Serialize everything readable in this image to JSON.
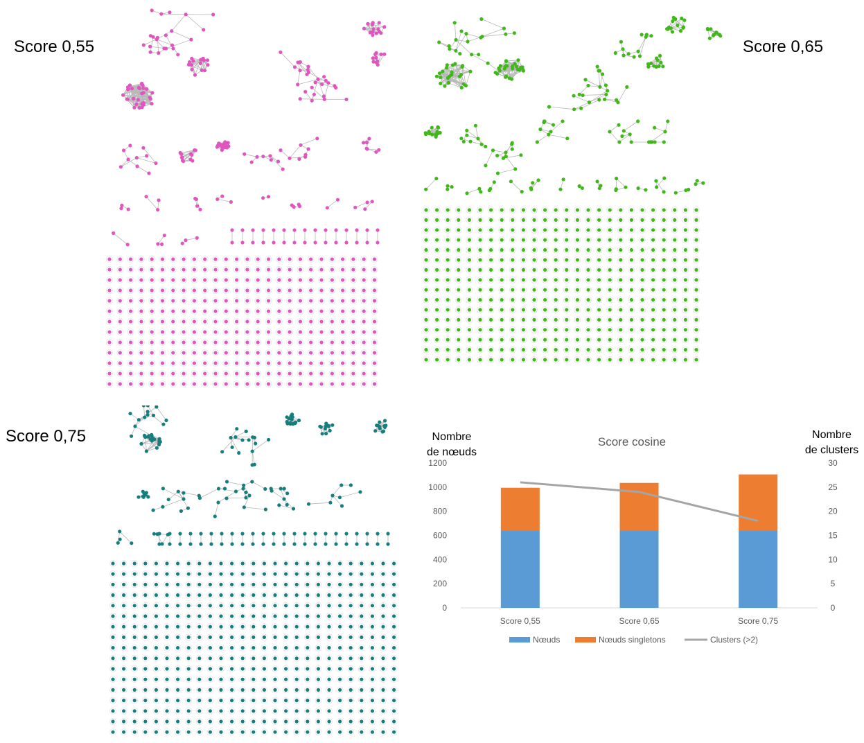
{
  "panels": [
    {
      "score_label": "Score 0,55",
      "color": "#e055c0"
    },
    {
      "score_label": "Score 0,65",
      "color": "#3fb818"
    },
    {
      "score_label": "Score 0,75",
      "color": "#167f7d"
    }
  ],
  "edge_color": "#b8b8b8",
  "chart_data": {
    "type": "bar",
    "title": "Score cosine",
    "y_left_label": [
      "Nombre",
      "de nœuds"
    ],
    "y_right_label": [
      "Nombre",
      "de clusters"
    ],
    "categories": [
      "Score 0,55",
      "Score 0,65",
      "Score 0,75"
    ],
    "stacked": true,
    "series": [
      {
        "name": "Nœuds",
        "color": "#5b9bd5",
        "axis": "left",
        "values": [
          640,
          640,
          640
        ]
      },
      {
        "name": "Nœuds singletons",
        "color": "#ed7d31",
        "axis": "left",
        "values": [
          355,
          395,
          465
        ]
      },
      {
        "name": "Clusters (>2)",
        "color": "#a5a5a5",
        "axis": "right",
        "type": "line",
        "values": [
          26,
          24,
          18
        ]
      }
    ],
    "ylim": [
      0,
      1200
    ],
    "yticks": [
      0,
      200,
      400,
      600,
      800,
      1000,
      1200
    ],
    "y2lim": [
      0,
      30
    ],
    "y2ticks": [
      0,
      5,
      10,
      15,
      20,
      25,
      30
    ],
    "grid": false,
    "legend": "bottom"
  }
}
